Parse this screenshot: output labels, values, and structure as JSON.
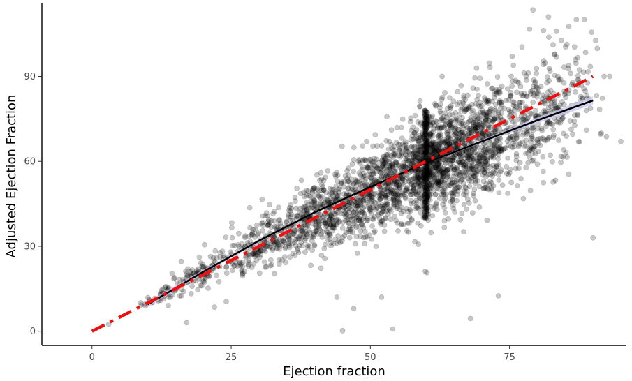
{
  "colors": {
    "point": "#000000",
    "fit_line": "#000000",
    "ci_band": "#c9c9ef",
    "identity_line": "#ee1111",
    "axis": "#000000",
    "tick_text": "#4d4d4d"
  },
  "chart_data": {
    "type": "scatter",
    "title": "",
    "xlabel": "Ejection fraction",
    "ylabel": "Adjusted Ejection Fraction",
    "xlim": [
      -9,
      96
    ],
    "ylim": [
      -5,
      116
    ],
    "x_ticks": [
      0,
      25,
      50,
      75
    ],
    "y_ticks": [
      0,
      30,
      60,
      90
    ],
    "x_tick_labels": [
      "0",
      "25",
      "50",
      "75"
    ],
    "y_tick_labels": [
      "0",
      "30",
      "60",
      "90"
    ],
    "grid": false,
    "legend": "none",
    "point_alpha": 0.22,
    "point_count_approx": 3200,
    "fit_line": {
      "style": "solid",
      "x": [
        10,
        20,
        30,
        40,
        50,
        60,
        70,
        80,
        90
      ],
      "y": [
        9.5,
        21,
        32,
        42,
        51,
        59.5,
        67,
        74.5,
        81.5
      ]
    },
    "ci_band": {
      "x": [
        10,
        20,
        30,
        40,
        50,
        60,
        70,
        80,
        90
      ],
      "lower": [
        8.5,
        20.3,
        31.5,
        41.6,
        50.7,
        59.2,
        66.5,
        73.5,
        80.0
      ],
      "upper": [
        10.5,
        21.7,
        32.5,
        42.4,
        51.3,
        59.8,
        67.5,
        75.5,
        83.0
      ]
    },
    "identity_line": {
      "style": "dashed",
      "x": [
        0,
        90
      ],
      "y": [
        0,
        90
      ]
    },
    "outliers": [
      [
        17,
        3
      ],
      [
        22,
        8.5
      ],
      [
        45,
        0.2
      ],
      [
        54,
        0.8
      ],
      [
        68,
        4.5
      ],
      [
        73,
        12.5
      ],
      [
        90,
        33
      ],
      [
        95,
        67
      ],
      [
        82,
        111
      ],
      [
        87,
        110
      ],
      [
        92,
        90
      ],
      [
        93,
        90
      ],
      [
        84,
        78
      ],
      [
        80,
        59
      ],
      [
        47,
        8
      ],
      [
        44,
        12
      ],
      [
        3,
        2.5
      ],
      [
        52,
        12
      ]
    ],
    "clusters": [
      {
        "cx": 12,
        "cy": 12,
        "sx": 1.5,
        "sy": 2,
        "rho": 0.6,
        "n": 30
      },
      {
        "cx": 20,
        "cy": 20,
        "sx": 3.5,
        "sy": 4,
        "rho": 0.75,
        "n": 120
      },
      {
        "cx": 32,
        "cy": 32,
        "sx": 4,
        "sy": 6,
        "rho": 0.6,
        "n": 260
      },
      {
        "cx": 42,
        "cy": 42,
        "sx": 4,
        "sy": 7.5,
        "rho": 0.5,
        "n": 380
      },
      {
        "cx": 52,
        "cy": 52,
        "sx": 3.5,
        "sy": 9,
        "rho": 0.45,
        "n": 500
      },
      {
        "cx": 61,
        "cy": 60,
        "sx": 3,
        "sy": 10,
        "rho": 0.35,
        "n": 750
      },
      {
        "cx": 69,
        "cy": 66,
        "sx": 3.5,
        "sy": 10,
        "rho": 0.4,
        "n": 550
      },
      {
        "cx": 78,
        "cy": 74,
        "sx": 4,
        "sy": 11,
        "rho": 0.4,
        "n": 320
      },
      {
        "cx": 86,
        "cy": 81,
        "sx": 2.5,
        "sy": 12,
        "rho": 0.3,
        "n": 90
      }
    ],
    "vertical_band": {
      "x": 60,
      "y_range": [
        40,
        78
      ],
      "n": 220
    }
  }
}
